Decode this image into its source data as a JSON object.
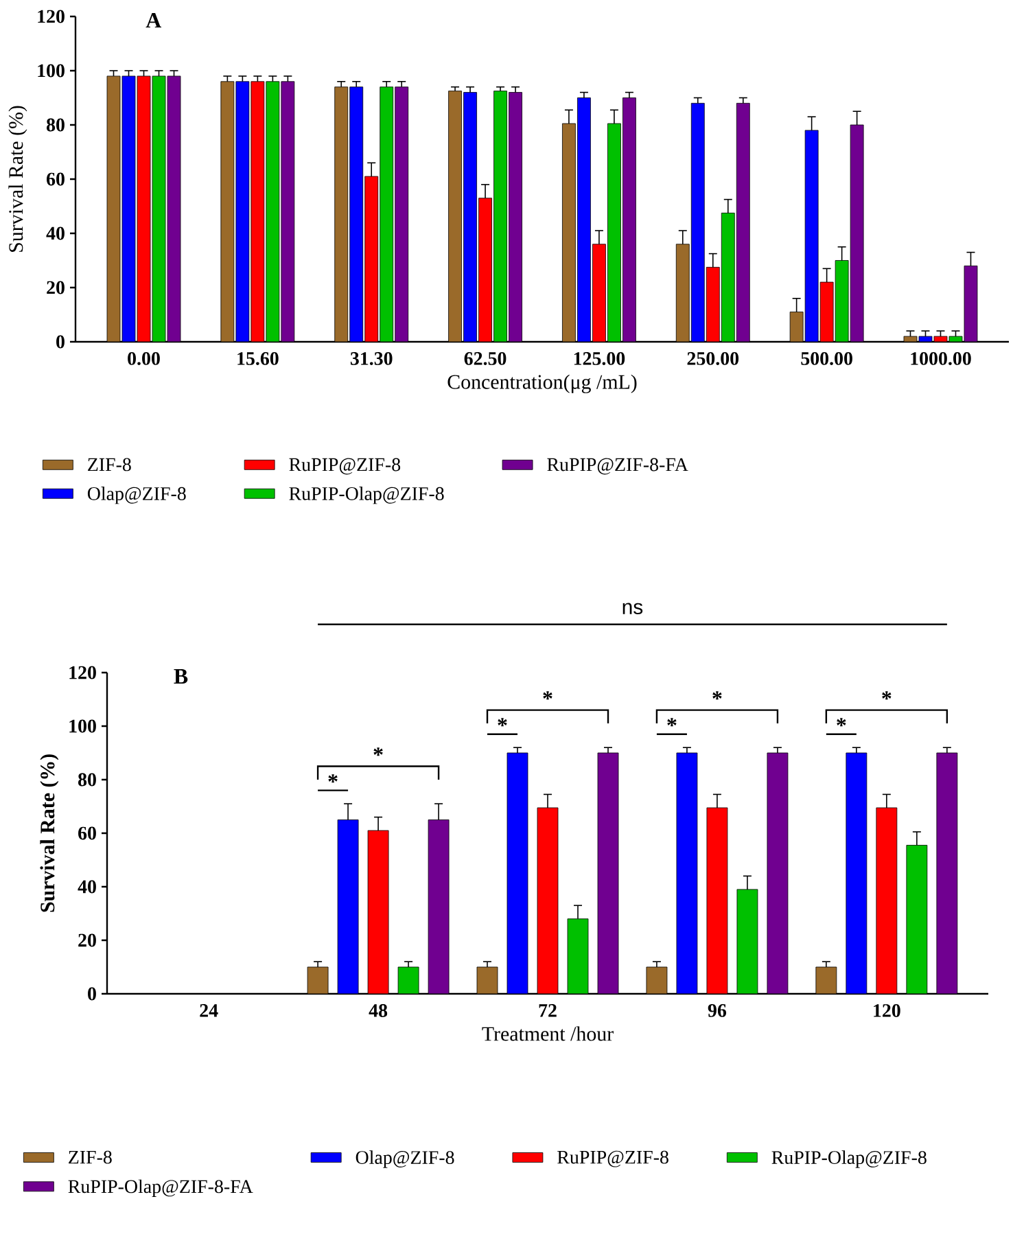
{
  "chart_data": [
    {
      "type": "bar",
      "title": "A",
      "xlabel": "Concentration(μg /mL)",
      "ylabel": "Survival Rate (%)",
      "categories": [
        "0.00",
        "15.60",
        "31.30",
        "62.50",
        "125.00",
        "250.00",
        "500.00",
        "1000.00"
      ],
      "series": [
        {
          "name": "ZIF-8",
          "color": "#9a6a2a",
          "values": [
            98,
            96,
            94,
            92.5,
            80.5,
            36,
            11,
            2
          ],
          "errors": [
            2,
            2,
            2,
            1.5,
            5,
            5,
            5,
            2
          ]
        },
        {
          "name": "Olap@ZIF-8",
          "color": "#0000ff",
          "values": [
            98,
            96,
            94,
            92,
            90,
            88,
            78,
            2
          ],
          "errors": [
            2,
            2,
            2,
            2,
            2,
            2,
            5,
            2
          ]
        },
        {
          "name": "RuPIP@ZIF-8",
          "color": "#ff0000",
          "values": [
            98,
            96,
            61,
            53,
            36,
            27.5,
            22,
            2
          ],
          "errors": [
            2,
            2,
            5,
            5,
            5,
            5,
            5,
            2
          ]
        },
        {
          "name": "RuPIP-Olap@ZIF-8",
          "color": "#00c000",
          "values": [
            98,
            96,
            94,
            92.5,
            80.5,
            47.5,
            30,
            2
          ],
          "errors": [
            2,
            2,
            2,
            1.5,
            5,
            5,
            5,
            2
          ]
        },
        {
          "name": "RuPIP@ZIF-8-FA",
          "color": "#700090",
          "values": [
            98,
            96,
            94,
            92,
            90,
            88,
            80,
            28
          ],
          "errors": [
            2,
            2,
            2,
            2,
            2,
            2,
            5,
            5
          ]
        }
      ],
      "ylim": [
        0,
        120
      ],
      "yticks": [
        0,
        20,
        40,
        60,
        80,
        100,
        120
      ],
      "legend": "bottom"
    },
    {
      "type": "bar",
      "title": "B",
      "xlabel": "Treatment /hour",
      "ylabel": "Survival Rate (%)",
      "categories": [
        "24",
        "48",
        "72",
        "96",
        "120"
      ],
      "series": [
        {
          "name": "ZIF-8",
          "color": "#9a6a2a",
          "values": [
            null,
            10,
            10,
            10,
            10
          ],
          "errors": [
            null,
            2,
            2,
            2,
            2
          ]
        },
        {
          "name": "Olap@ZIF-8",
          "color": "#0000ff",
          "values": [
            null,
            65,
            90,
            90,
            90
          ],
          "errors": [
            null,
            6,
            2,
            2,
            2
          ]
        },
        {
          "name": "RuPIP@ZIF-8",
          "color": "#ff0000",
          "values": [
            null,
            61,
            69.5,
            69.5,
            69.5
          ],
          "errors": [
            null,
            5,
            5,
            5,
            5
          ]
        },
        {
          "name": "RuPIP-Olap@ZIF-8",
          "color": "#00c000",
          "values": [
            null,
            10,
            28,
            39,
            55.5
          ],
          "errors": [
            null,
            2,
            5,
            5,
            5
          ]
        },
        {
          "name": "RuPIP-Olap@ZIF-8-FA",
          "color": "#700090",
          "values": [
            null,
            65,
            90,
            90,
            90
          ],
          "errors": [
            null,
            6,
            2,
            2,
            2
          ]
        }
      ],
      "ylim": [
        0,
        120
      ],
      "yticks": [
        0,
        20,
        40,
        60,
        80,
        100,
        120
      ],
      "legend": "bottom",
      "annotations": [
        "ns",
        "*",
        "*",
        "*",
        "*",
        "*",
        "*",
        "*",
        "*"
      ]
    }
  ]
}
